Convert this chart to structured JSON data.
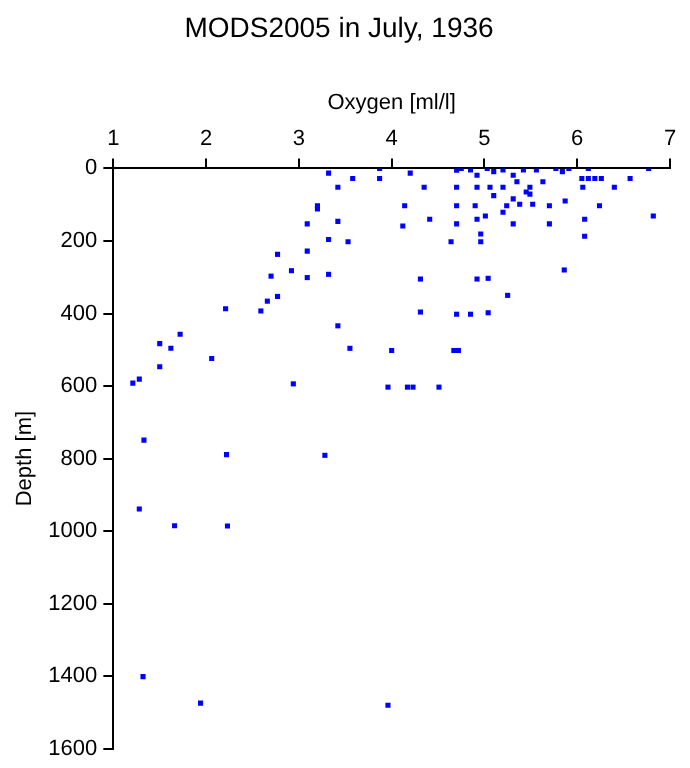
{
  "chart_data": {
    "type": "scatter",
    "title": "MODS2005 in July, 1936",
    "xlabel": "Oxygen [ml/l]",
    "ylabel": "Depth [m]",
    "xlim": [
      1,
      7
    ],
    "xticks": [
      1,
      2,
      3,
      4,
      5,
      6,
      7
    ],
    "ylim": [
      1600,
      0
    ],
    "yticks": [
      0,
      200,
      400,
      600,
      800,
      1000,
      1200,
      1400,
      1600
    ],
    "grid": false,
    "legend": false,
    "marker": "square",
    "series": [
      {
        "color": "#0000ff",
        "x": [
          3.32,
          3.58,
          3.42,
          3.87,
          3.87,
          4.2,
          4.35,
          4.14,
          4.12,
          4.41,
          3.2,
          3.2,
          3.09,
          3.42,
          3.32,
          3.53,
          3.09,
          2.77,
          2.92,
          2.7,
          3.09,
          3.32,
          2.77,
          2.66,
          2.21,
          2.59,
          3.42,
          4.31,
          4.31,
          4.64,
          4.7,
          4.7,
          4.7,
          4.7,
          4.75,
          4.9,
          4.92,
          4.96,
          4.96,
          4.92,
          5.01,
          5.04,
          5.04,
          4.7,
          4.85,
          5.25,
          5.24,
          5.31,
          5.2,
          5.38,
          5.49,
          5.52,
          5.7,
          5.7,
          5.87,
          5.86,
          6.08,
          6.08,
          6.24,
          6.06,
          6.26,
          6.4,
          6.57,
          6.77,
          6.82,
          4.85,
          4.92,
          5.03,
          5.1,
          5.2,
          5.31,
          5.42,
          5.56,
          5.77,
          5.91,
          6.12,
          6.19,
          6.12,
          4.92,
          5.06,
          5.2,
          5.35,
          5.49,
          5.63,
          5.84,
          6.05,
          5.1,
          5.31,
          5.45,
          3.55,
          4.0,
          3.96,
          4.17,
          4.23,
          4.51,
          4.67,
          4.72,
          2.94,
          2.06,
          1.72,
          1.62,
          1.5,
          1.5,
          1.21,
          1.28,
          1.33,
          2.22,
          3.28,
          1.28,
          1.66,
          2.23,
          1.32,
          1.94,
          3.96
        ],
        "values": [
          13,
          28,
          52,
          0,
          28,
          13,
          52,
          103,
          159,
          140,
          103,
          112,
          153,
          146,
          196,
          202,
          228,
          237,
          282,
          297,
          301,
          292,
          353,
          366,
          387,
          393,
          434,
          305,
          396,
          202,
          103,
          153,
          52,
          5,
          0,
          103,
          140,
          181,
          202,
          305,
          131,
          303,
          398,
          402,
          402,
          350,
          103,
          153,
          121,
          99,
          71,
          99,
          103,
          153,
          90,
          280,
          140,
          187,
          103,
          52,
          28,
          52,
          28,
          0,
          131,
          4,
          19,
          0,
          9,
          4,
          19,
          4,
          4,
          0,
          0,
          0,
          28,
          28,
          52,
          52,
          52,
          37,
          52,
          37,
          9,
          28,
          75,
          84,
          65,
          496,
          502,
          603,
          603,
          603,
          603,
          502,
          502,
          594,
          524,
          457,
          496,
          483,
          547,
          592,
          581,
          749,
          789,
          791,
          939,
          985,
          986,
          1401,
          1474,
          1480
        ]
      }
    ]
  }
}
